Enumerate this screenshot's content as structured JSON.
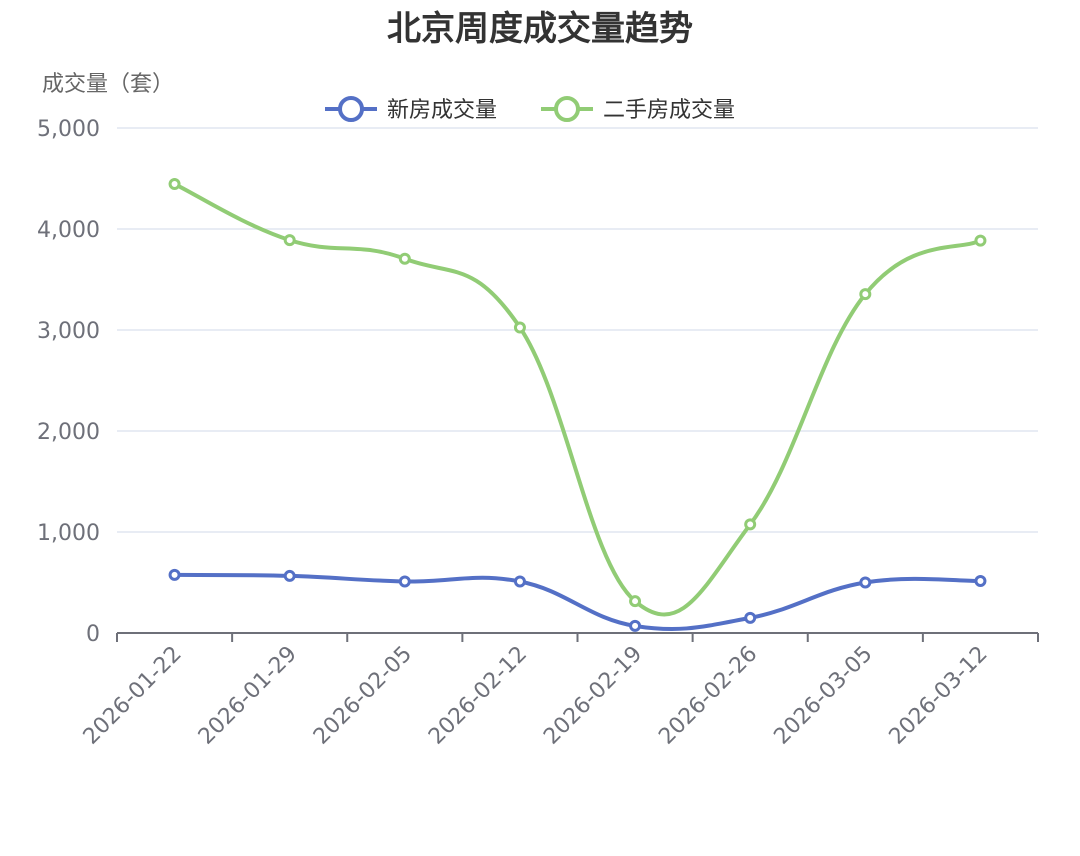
{
  "chart_data": {
    "type": "line",
    "title": "北京周度成交量趋势",
    "ylabel": "成交量（套）",
    "xlabel": "",
    "categories": [
      "2026-01-22",
      "2026-01-29",
      "2026-02-05",
      "2026-02-12",
      "2026-02-19",
      "2026-02-26",
      "2026-03-05",
      "2026-03-12"
    ],
    "series": [
      {
        "name": "新房成交量",
        "color": "#5470c6",
        "values": [
          575,
          565,
          510,
          510,
          70,
          150,
          500,
          515
        ]
      },
      {
        "name": "二手房成交量",
        "color": "#91cc75",
        "values": [
          4445,
          3890,
          3705,
          3025,
          315,
          1075,
          3355,
          3885
        ]
      }
    ],
    "ylim": [
      0,
      5000
    ],
    "yticks": [
      0,
      1000,
      2000,
      3000,
      4000,
      5000
    ],
    "ytick_labels": [
      "0",
      "1,000",
      "2,000",
      "3,000",
      "4,000",
      "5,000"
    ],
    "grid": true,
    "legend_position": "top-center",
    "smooth": true
  }
}
